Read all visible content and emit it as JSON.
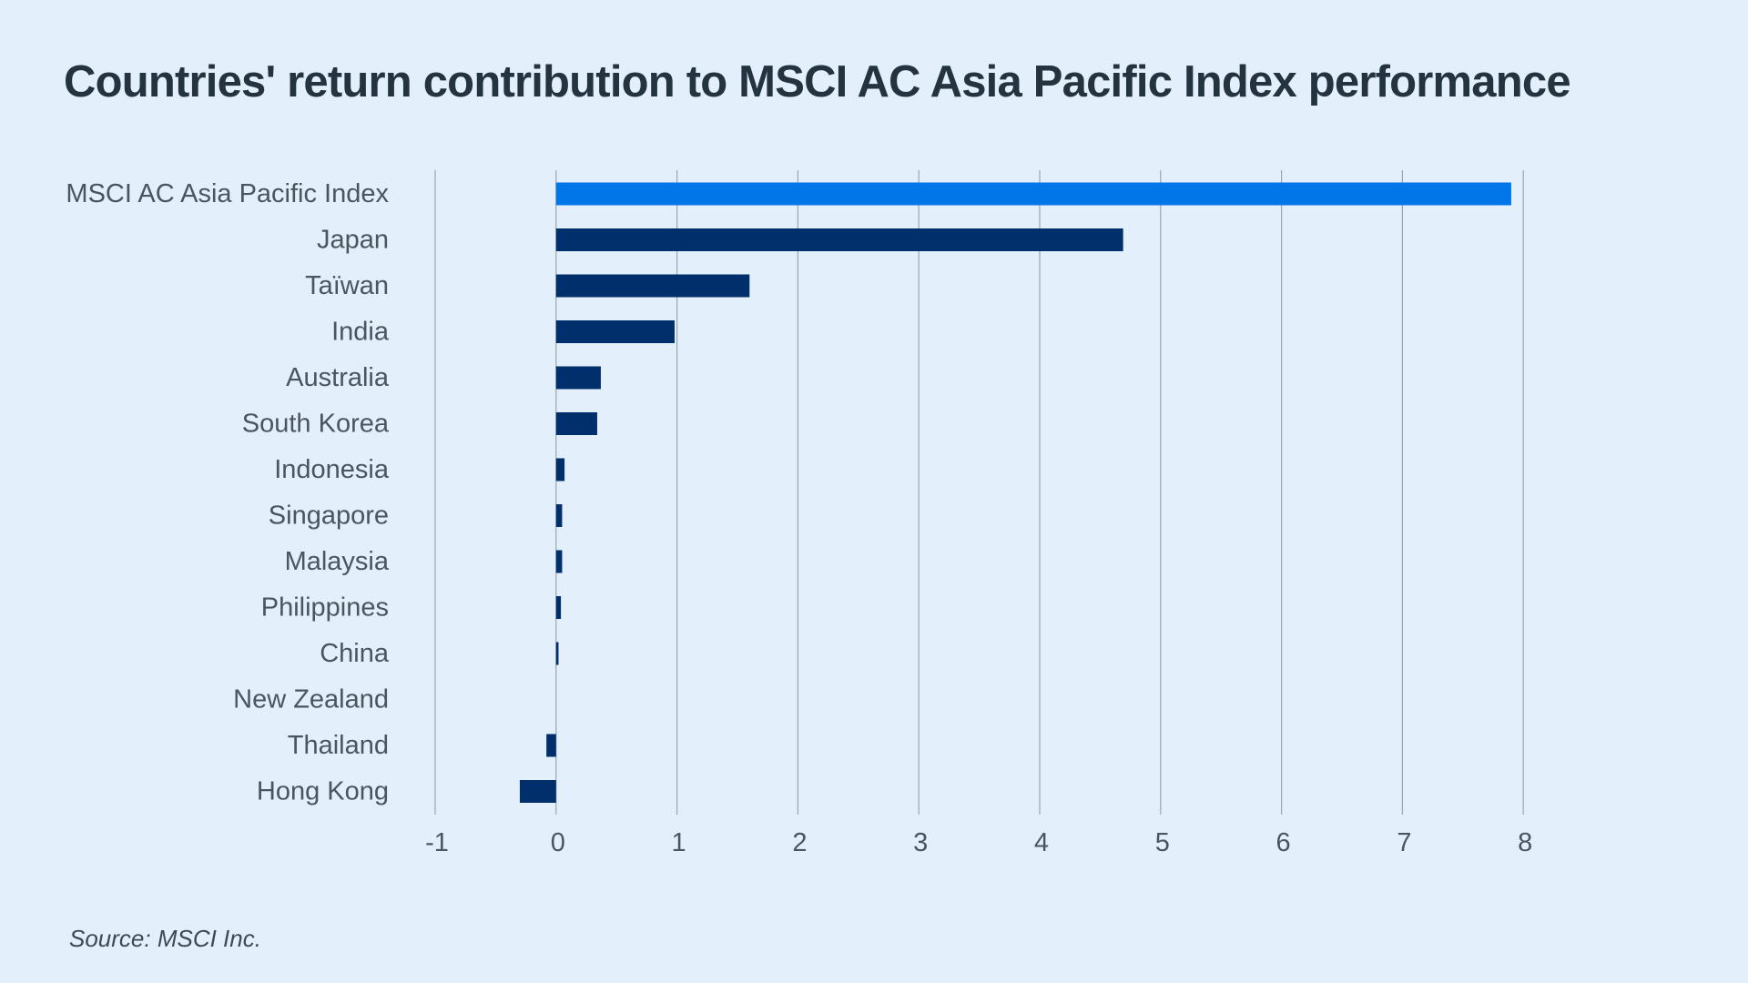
{
  "title": "Countries' return contribution to MSCI AC Asia Pacific Index performance",
  "source": "Source: MSCI Inc.",
  "colors": {
    "background": "#e3effa",
    "highlight_bar": "#0076e8",
    "bar": "#002f6c",
    "gridline": "#9aa6b0",
    "label_text": "#4a5560",
    "title_text": "#243340"
  },
  "chart_data": {
    "type": "bar",
    "orientation": "horizontal",
    "title": "Countries' return contribution to MSCI AC Asia Pacific Index performance",
    "xlabel": "",
    "ylabel": "",
    "xlim": [
      -1,
      8
    ],
    "xticks": [
      "-1",
      "0",
      "1",
      "2",
      "3",
      "4",
      "5",
      "6",
      "7",
      "8"
    ],
    "grid": true,
    "categories": [
      "MSCI AC Asia Pacific Index",
      "Japan",
      "Taïwan",
      "India",
      "Australia",
      "South Korea",
      "Indonesia",
      "Singapore",
      "Malaysia",
      "Philippines",
      "China",
      "New Zealand",
      "Thailand",
      "Hong Kong"
    ],
    "values": [
      7.9,
      4.69,
      1.6,
      0.98,
      0.37,
      0.34,
      0.07,
      0.05,
      0.05,
      0.04,
      0.02,
      0.0,
      -0.08,
      -0.3
    ],
    "highlight_index": 0
  }
}
